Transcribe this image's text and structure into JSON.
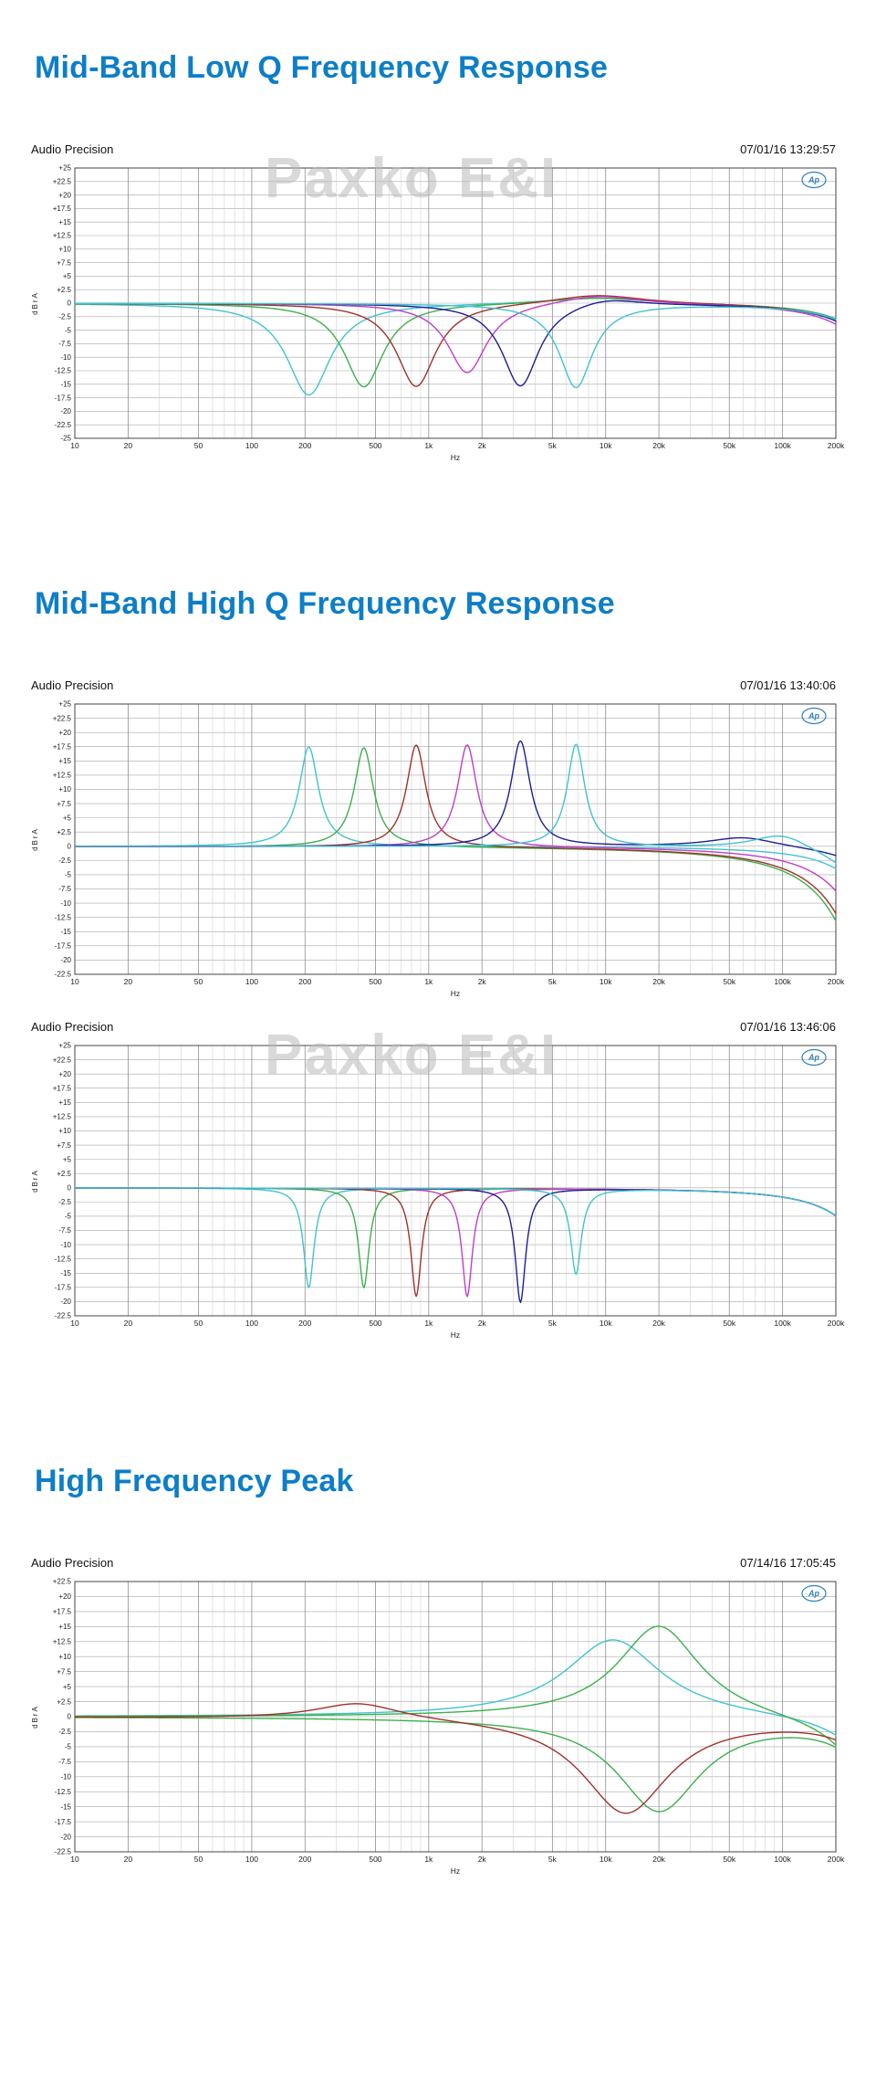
{
  "page": {
    "background": "#ffffff",
    "watermark_text": "Paxko E&I"
  },
  "headings": [
    {
      "text": "Mid-Band Low Q Frequency Response"
    },
    {
      "text": "Mid-Band High Q Frequency Response"
    },
    {
      "text": "High Frequency Peak"
    }
  ],
  "chart_data": [
    {
      "type": "line",
      "title": "Mid-Band Low Q Frequency Response",
      "source": "Audio Precision",
      "timestamp": "07/01/16 13:29:57",
      "logo": "Ap",
      "xscale": "log",
      "xlabel": "Hz",
      "ylabel": "dBrA",
      "xlim": [
        10,
        200000
      ],
      "ylim": [
        -25,
        25
      ],
      "ytick_step": 2.5,
      "grid": true,
      "legend": false,
      "xticks": [
        {
          "v": 10,
          "label": "10"
        },
        {
          "v": 20,
          "label": "20"
        },
        {
          "v": 50,
          "label": "50"
        },
        {
          "v": 100,
          "label": "100"
        },
        {
          "v": 200,
          "label": "200"
        },
        {
          "v": 500,
          "label": "500"
        },
        {
          "v": 1000,
          "label": "1k"
        },
        {
          "v": 2000,
          "label": "2k"
        },
        {
          "v": 5000,
          "label": "5k"
        },
        {
          "v": 10000,
          "label": "10k"
        },
        {
          "v": 20000,
          "label": "20k"
        },
        {
          "v": 50000,
          "label": "50k"
        },
        {
          "v": 100000,
          "label": "100k"
        },
        {
          "v": 200000,
          "label": "200k"
        }
      ],
      "series": [
        {
          "name": "cut-210hz",
          "color": "#41c3cf",
          "bells": [
            {
              "fc_hz": 210,
              "gain_db": -17,
              "bw_oct": 0.5
            },
            {
              "fc_hz": 9000,
              "gain_db": 1.2,
              "bw_oct": 1.2
            },
            {
              "fc_hz": 400000,
              "gain_db": -9,
              "bw_oct": 0.7
            }
          ]
        },
        {
          "name": "cut-430hz",
          "color": "#3cb04c",
          "bells": [
            {
              "fc_hz": 430,
              "gain_db": -15.5,
              "bw_oct": 0.45
            },
            {
              "fc_hz": 9000,
              "gain_db": 1.2,
              "bw_oct": 1.2
            },
            {
              "fc_hz": 400000,
              "gain_db": -9,
              "bw_oct": 0.7
            }
          ]
        },
        {
          "name": "cut-850hz",
          "color": "#a03229",
          "bells": [
            {
              "fc_hz": 850,
              "gain_db": -15.5,
              "bw_oct": 0.45
            },
            {
              "fc_hz": 9000,
              "gain_db": 1.8,
              "bw_oct": 1.1
            },
            {
              "fc_hz": 400000,
              "gain_db": -10,
              "bw_oct": 0.7
            }
          ]
        },
        {
          "name": "cut-1700hz",
          "color": "#bf3ec9",
          "bells": [
            {
              "fc_hz": 1650,
              "gain_db": -13,
              "bw_oct": 0.45
            },
            {
              "fc_hz": 9000,
              "gain_db": 1.8,
              "bw_oct": 1.0
            },
            {
              "fc_hz": 400000,
              "gain_db": -12,
              "bw_oct": 0.7
            }
          ]
        },
        {
          "name": "cut-3300hz",
          "color": "#1e1e96",
          "bells": [
            {
              "fc_hz": 3300,
              "gain_db": -15.5,
              "bw_oct": 0.42
            },
            {
              "fc_hz": 10000,
              "gain_db": 1.5,
              "bw_oct": 0.8
            },
            {
              "fc_hz": 400000,
              "gain_db": -10,
              "bw_oct": 0.7
            }
          ]
        },
        {
          "name": "cut-6800hz",
          "color": "#41c3cf",
          "bells": [
            {
              "fc_hz": 6800,
              "gain_db": -15.5,
              "bw_oct": 0.38
            },
            {
              "fc_hz": 400000,
              "gain_db": -9,
              "bw_oct": 0.7
            }
          ]
        }
      ]
    },
    {
      "type": "line",
      "title": "Mid-Band High Q Frequency Response",
      "source": "Audio Precision",
      "timestamp": "07/01/16 13:40:06",
      "logo": "Ap",
      "xscale": "log",
      "xlabel": "Hz",
      "ylabel": "dBrA",
      "xlim": [
        10,
        200000
      ],
      "ylim": [
        -22.5,
        25
      ],
      "ytick_step": 2.5,
      "grid": true,
      "legend": false,
      "xticks": [
        {
          "v": 10,
          "label": "10"
        },
        {
          "v": 20,
          "label": "20"
        },
        {
          "v": 50,
          "label": "50"
        },
        {
          "v": 100,
          "label": "100"
        },
        {
          "v": 200,
          "label": "200"
        },
        {
          "v": 500,
          "label": "500"
        },
        {
          "v": 1000,
          "label": "1k"
        },
        {
          "v": 2000,
          "label": "2k"
        },
        {
          "v": 5000,
          "label": "5k"
        },
        {
          "v": 10000,
          "label": "10k"
        },
        {
          "v": 20000,
          "label": "20k"
        },
        {
          "v": 50000,
          "label": "50k"
        },
        {
          "v": 100000,
          "label": "100k"
        },
        {
          "v": 200000,
          "label": "200k"
        }
      ],
      "series": [
        {
          "name": "boost-210hz",
          "color": "#41c3cf",
          "bells": [
            {
              "fc_hz": 210,
              "gain_db": 17.5,
              "bw_oct": 0.22
            },
            {
              "fc_hz": 400000,
              "gain_db": -12,
              "bw_oct": 0.7
            }
          ]
        },
        {
          "name": "boost-430hz",
          "color": "#3cb04c",
          "bells": [
            {
              "fc_hz": 430,
              "gain_db": 17.5,
              "bw_oct": 0.22
            },
            {
              "fc_hz": 400000,
              "gain_db": -40,
              "bw_oct": 0.7
            }
          ]
        },
        {
          "name": "boost-850hz",
          "color": "#a03229",
          "bells": [
            {
              "fc_hz": 850,
              "gain_db": 18,
              "bw_oct": 0.22
            },
            {
              "fc_hz": 400000,
              "gain_db": -36,
              "bw_oct": 0.7
            }
          ]
        },
        {
          "name": "boost-1700hz",
          "color": "#bf3ec9",
          "bells": [
            {
              "fc_hz": 1650,
              "gain_db": 18,
              "bw_oct": 0.22
            },
            {
              "fc_hz": 400000,
              "gain_db": -24,
              "bw_oct": 0.7
            }
          ]
        },
        {
          "name": "boost-3300hz",
          "color": "#1e1e96",
          "bells": [
            {
              "fc_hz": 3300,
              "gain_db": 18.5,
              "bw_oct": 0.22
            },
            {
              "fc_hz": 60000,
              "gain_db": 1.8,
              "bw_oct": 0.8
            },
            {
              "fc_hz": 400000,
              "gain_db": -6,
              "bw_oct": 0.7
            }
          ]
        },
        {
          "name": "boost-6800hz",
          "color": "#41c3cf",
          "bells": [
            {
              "fc_hz": 6800,
              "gain_db": 18,
              "bw_oct": 0.2
            },
            {
              "fc_hz": 100000,
              "gain_db": 3,
              "bw_oct": 0.7
            },
            {
              "fc_hz": 400000,
              "gain_db": -12,
              "bw_oct": 0.7
            }
          ]
        }
      ]
    },
    {
      "type": "line",
      "title": "Mid-Band High Q Frequency Response",
      "source": "Audio Precision",
      "timestamp": "07/01/16 13:46:06",
      "logo": "Ap",
      "xscale": "log",
      "xlabel": "Hz",
      "ylabel": "dBrA",
      "xlim": [
        10,
        200000
      ],
      "ylim": [
        -22.5,
        25
      ],
      "ytick_step": 2.5,
      "grid": true,
      "legend": false,
      "xticks": [
        {
          "v": 10,
          "label": "10"
        },
        {
          "v": 20,
          "label": "20"
        },
        {
          "v": 50,
          "label": "50"
        },
        {
          "v": 100,
          "label": "100"
        },
        {
          "v": 200,
          "label": "200"
        },
        {
          "v": 500,
          "label": "500"
        },
        {
          "v": 1000,
          "label": "1k"
        },
        {
          "v": 2000,
          "label": "2k"
        },
        {
          "v": 5000,
          "label": "5k"
        },
        {
          "v": 10000,
          "label": "10k"
        },
        {
          "v": 20000,
          "label": "20k"
        },
        {
          "v": 50000,
          "label": "50k"
        },
        {
          "v": 100000,
          "label": "100k"
        },
        {
          "v": 200000,
          "label": "200k"
        }
      ],
      "series": [
        {
          "name": "notch-210hz",
          "color": "#41c3cf",
          "bells": [
            {
              "fc_hz": 210,
              "gain_db": -17.5,
              "bw_oct": 0.12
            },
            {
              "fc_hz": 400000,
              "gain_db": -15,
              "bw_oct": 0.7
            }
          ]
        },
        {
          "name": "notch-430hz",
          "color": "#3cb04c",
          "bells": [
            {
              "fc_hz": 430,
              "gain_db": -17.5,
              "bw_oct": 0.12
            },
            {
              "fc_hz": 400000,
              "gain_db": -15,
              "bw_oct": 0.7
            }
          ]
        },
        {
          "name": "notch-850hz",
          "color": "#a03229",
          "bells": [
            {
              "fc_hz": 850,
              "gain_db": -19,
              "bw_oct": 0.12
            },
            {
              "fc_hz": 400000,
              "gain_db": -15,
              "bw_oct": 0.7
            }
          ]
        },
        {
          "name": "notch-1700hz",
          "color": "#bf3ec9",
          "bells": [
            {
              "fc_hz": 1650,
              "gain_db": -19,
              "bw_oct": 0.12
            },
            {
              "fc_hz": 400000,
              "gain_db": -15,
              "bw_oct": 0.7
            }
          ]
        },
        {
          "name": "notch-3300hz",
          "color": "#1e1e96",
          "bells": [
            {
              "fc_hz": 3300,
              "gain_db": -20,
              "bw_oct": 0.12
            },
            {
              "fc_hz": 400000,
              "gain_db": -15,
              "bw_oct": 0.7
            }
          ]
        },
        {
          "name": "notch-6800hz",
          "color": "#41c3cf",
          "bells": [
            {
              "fc_hz": 6800,
              "gain_db": -15,
              "bw_oct": 0.12
            },
            {
              "fc_hz": 400000,
              "gain_db": -15,
              "bw_oct": 0.7
            }
          ]
        }
      ]
    },
    {
      "type": "line",
      "title": "High Frequency Peak",
      "source": "Audio Precision",
      "timestamp": "07/14/16 17:05:45",
      "logo": "Ap",
      "xscale": "log",
      "xlabel": "Hz",
      "ylabel": "dBrA",
      "xlim": [
        10,
        200000
      ],
      "ylim": [
        -22.5,
        22.5
      ],
      "ytick_step": 2.5,
      "grid": true,
      "legend": false,
      "xticks": [
        {
          "v": 10,
          "label": "10"
        },
        {
          "v": 20,
          "label": "20"
        },
        {
          "v": 50,
          "label": "50"
        },
        {
          "v": 100,
          "label": "100"
        },
        {
          "v": 200,
          "label": "200"
        },
        {
          "v": 500,
          "label": "500"
        },
        {
          "v": 1000,
          "label": "1k"
        },
        {
          "v": 2000,
          "label": "2k"
        },
        {
          "v": 5000,
          "label": "5k"
        },
        {
          "v": 10000,
          "label": "10k"
        },
        {
          "v": 20000,
          "label": "20k"
        },
        {
          "v": 50000,
          "label": "50k"
        },
        {
          "v": 100000,
          "label": "100k"
        },
        {
          "v": 200000,
          "label": "200k"
        }
      ],
      "series": [
        {
          "name": "hf-boost-wide",
          "color": "#41c3cf",
          "bells": [
            {
              "fc_hz": 11000,
              "gain_db": 13,
              "bw_oct": 1.1
            },
            {
              "fc_hz": 400000,
              "gain_db": -12,
              "bw_oct": 0.7
            }
          ]
        },
        {
          "name": "hf-boost",
          "color": "#3cb04c",
          "bells": [
            {
              "fc_hz": 20000,
              "gain_db": 15.5,
              "bw_oct": 0.95
            },
            {
              "fc_hz": 400000,
              "gain_db": -18,
              "bw_oct": 0.7
            }
          ]
        },
        {
          "name": "hf-cut",
          "color": "#3cb04c",
          "bells": [
            {
              "fc_hz": 20000,
              "gain_db": -15.5,
              "bw_oct": 0.95
            },
            {
              "fc_hz": 400000,
              "gain_db": -12,
              "bw_oct": 0.7
            }
          ]
        },
        {
          "name": "hf-cut-wide",
          "color": "#a03229",
          "bells": [
            {
              "fc_hz": 400,
              "gain_db": 2.8,
              "bw_oct": 1.0
            },
            {
              "fc_hz": 13000,
              "gain_db": -16,
              "bw_oct": 1.0
            },
            {
              "fc_hz": 400000,
              "gain_db": -9,
              "bw_oct": 0.7
            }
          ]
        }
      ]
    }
  ]
}
